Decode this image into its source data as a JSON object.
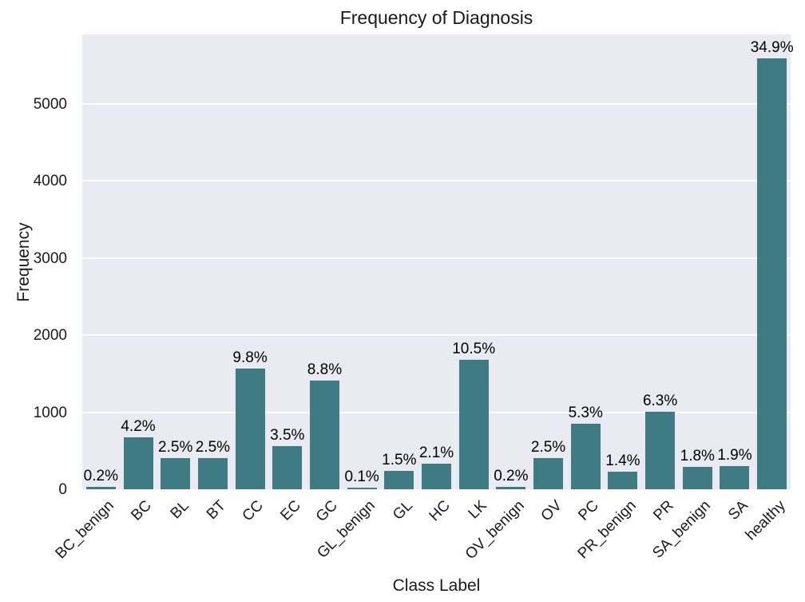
{
  "figure": {
    "title": "Frequency of Diagnosis",
    "xlabel": "Class Label",
    "ylabel": "Frequency"
  },
  "colors": {
    "bar": "#3e7b83",
    "plot_background": "#eaeaf2",
    "gridline": "#ffffff",
    "figure_background": "#ffffff",
    "text": "#1a1a1a",
    "bar_label_text": "#000000"
  },
  "chart_data": {
    "type": "bar",
    "title": "Frequency of Diagnosis",
    "xlabel": "Class Label",
    "ylabel": "Frequency",
    "categories": [
      "BC_benign",
      "BC",
      "BL",
      "BT",
      "CC",
      "EC",
      "GC",
      "GL_benign",
      "GL",
      "HC",
      "LK",
      "OV_benign",
      "OV",
      "PC",
      "PR_benign",
      "PR",
      "SA_benign",
      "SA",
      "healthy"
    ],
    "values": [
      32,
      672,
      400,
      400,
      1568,
      560,
      1408,
      16,
      240,
      336,
      1680,
      32,
      400,
      848,
      224,
      1008,
      288,
      304,
      5584
    ],
    "bar_labels": [
      "0.2%",
      "4.2%",
      "2.5%",
      "2.5%",
      "9.8%",
      "3.5%",
      "8.8%",
      "0.1%",
      "1.5%",
      "2.1%",
      "10.5%",
      "0.2%",
      "2.5%",
      "5.3%",
      "1.4%",
      "6.3%",
      "1.8%",
      "1.9%",
      "34.9%"
    ],
    "yticks": [
      0,
      1000,
      2000,
      3000,
      4000,
      5000
    ],
    "ylim": [
      0,
      5900
    ],
    "grid": "horizontal",
    "legend": null
  }
}
